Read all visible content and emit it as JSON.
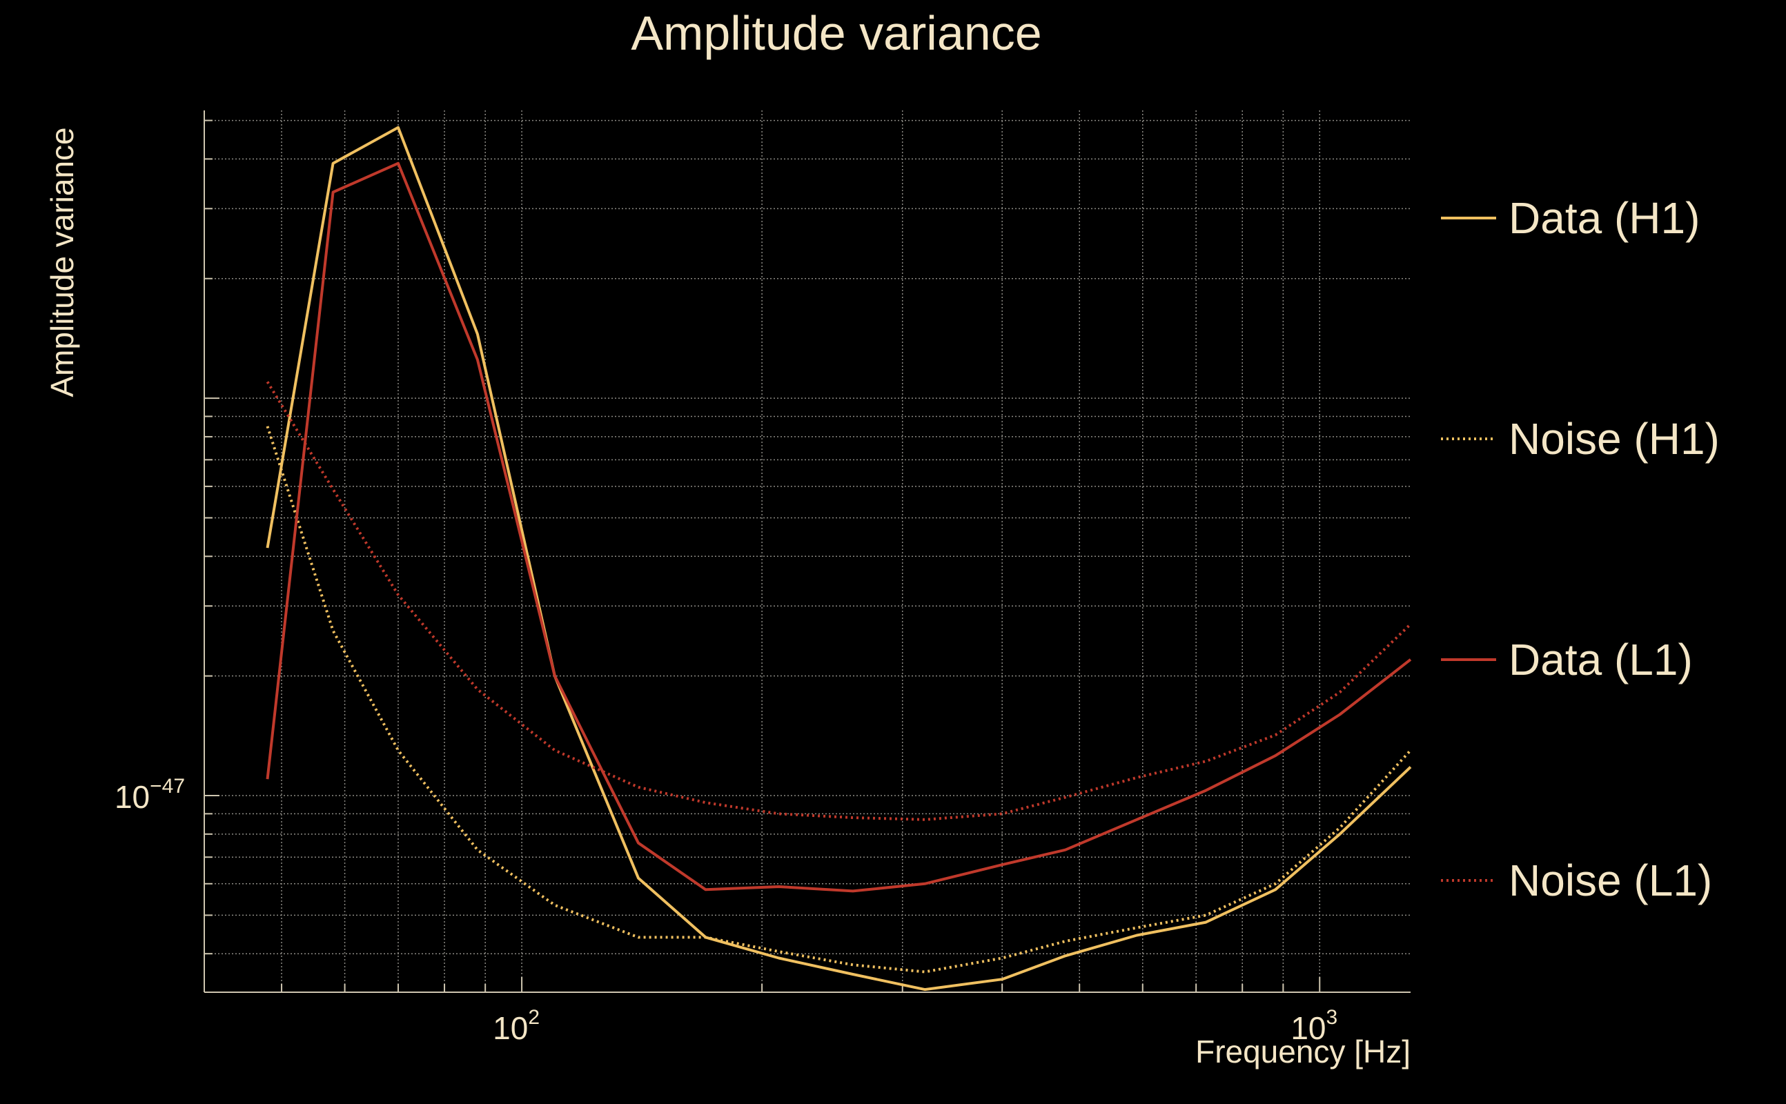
{
  "chart_data": {
    "type": "line",
    "title": "Amplitude variance",
    "xlabel": "Frequency [Hz]",
    "ylabel": "Amplitude variance",
    "xscale": "log",
    "yscale": "log",
    "xlim": [
      40,
      1300
    ],
    "ylim": [
      3.2e-48,
      5.3e-46
    ],
    "grid": true,
    "grid_style": "dotted",
    "background": "#000000",
    "text_color": "#f4e6c6",
    "legend_position": "right",
    "x_tick_labels": [
      {
        "base": "10",
        "exp": "2",
        "value": 100
      },
      {
        "base": "10",
        "exp": "3",
        "value": 1000
      }
    ],
    "y_tick_labels": [
      {
        "base": "10",
        "exp": "−47",
        "value": 1e-47
      }
    ],
    "x": [
      48,
      58,
      70,
      88,
      110,
      140,
      170,
      210,
      260,
      320,
      400,
      480,
      590,
      720,
      880,
      1060,
      1300
    ],
    "series": [
      {
        "name": "Data (H1)",
        "color": "#f0c060",
        "style": "solid",
        "values": [
          4.2e-47,
          3.9e-46,
          4.8e-46,
          1.45e-46,
          2e-47,
          6.2e-48,
          4.4e-48,
          3.9e-48,
          3.55e-48,
          3.25e-48,
          3.45e-48,
          3.95e-48,
          4.45e-48,
          4.8e-48,
          5.8e-48,
          8e-48,
          1.18e-47
        ]
      },
      {
        "name": "Noise (H1)",
        "color": "#f0c060",
        "style": "dotted",
        "values": [
          8.5e-47,
          2.6e-47,
          1.3e-47,
          7.3e-48,
          5.3e-48,
          4.4e-48,
          4.4e-48,
          4.05e-48,
          3.75e-48,
          3.6e-48,
          3.9e-48,
          4.3e-48,
          4.65e-48,
          5e-48,
          6e-48,
          8.3e-48,
          1.3e-47
        ]
      },
      {
        "name": "Data (L1)",
        "color": "#c0392b",
        "style": "solid",
        "values": [
          1.1e-47,
          3.3e-46,
          3.9e-46,
          1.25e-46,
          2e-47,
          7.6e-48,
          5.8e-48,
          5.9e-48,
          5.75e-48,
          6e-48,
          6.7e-48,
          7.3e-48,
          8.7e-48,
          1.03e-47,
          1.26e-47,
          1.6e-47,
          2.2e-47
        ]
      },
      {
        "name": "Noise (L1)",
        "color": "#c0392b",
        "style": "dotted",
        "values": [
          1.1e-46,
          5.9e-47,
          3.2e-47,
          1.85e-47,
          1.3e-47,
          1.05e-47,
          9.6e-48,
          9e-48,
          8.8e-48,
          8.7e-48,
          9e-48,
          9.9e-48,
          1.11e-47,
          1.22e-47,
          1.42e-47,
          1.82e-47,
          2.7e-47
        ]
      }
    ]
  }
}
